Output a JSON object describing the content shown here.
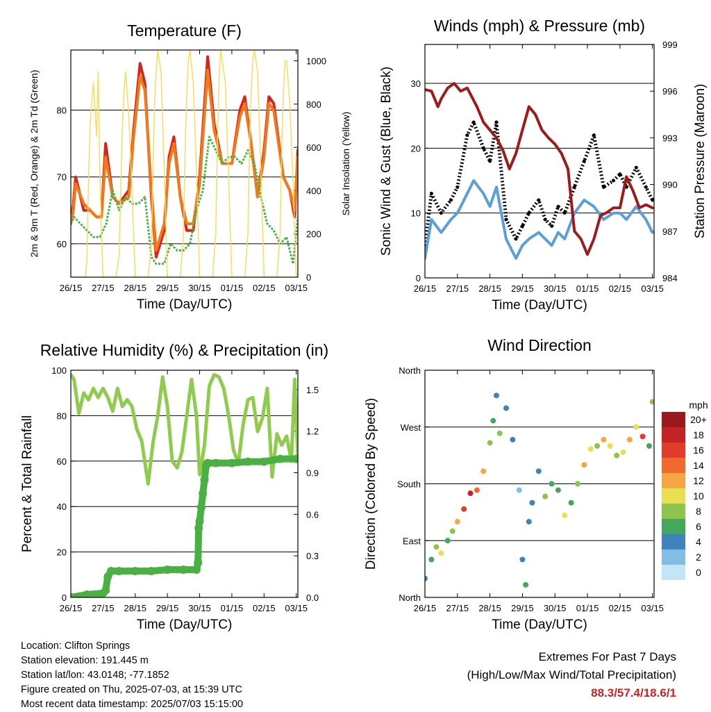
{
  "info": {
    "location": "Location: Clifton Springs",
    "elevation": "Station elevation: 191.445 m",
    "latlon": "Station lat/lon: 43.0148; -77.1852",
    "created": "Figure created on Thu, 2025-07-03, at 15:39 UTC",
    "recent": "Most recent data timestamp: 2025/07/03 15:15:00"
  },
  "extremes": {
    "title": "Extremes For Past 7 Days",
    "subtitle": "(High/Low/Max Wind/Total Precipitation)",
    "values": "88.3/57.4/18.6/1",
    "color": "#cc2222"
  },
  "colors": {
    "temp2m": "#d6251c",
    "temp9m": "#f07a1a",
    "dewpoint": "#4ab043",
    "solar": "#f7dc5c",
    "gust": "#000000",
    "wind": "#5aa0d6",
    "pressure": "#9e1b1b",
    "rh": "#8fcc4e",
    "precip": "#4ab043"
  },
  "chart_data": [
    {
      "type": "line",
      "title": "Temperature (F)",
      "xlabel": "Time (Day/UTC)",
      "ylabel": "2m & 9m T (Red, Orange) & 2m Td (Green)",
      "ylabel_right": "Solar Insolation (Yellow)",
      "x_ticks": [
        "26/15",
        "27/15",
        "28/15",
        "29/15",
        "30/15",
        "01/15",
        "02/15",
        "03/15"
      ],
      "ylim": [
        55,
        89
      ],
      "y_ticks": [
        60,
        70,
        80
      ],
      "ylim_right": [
        0,
        1050
      ],
      "y_ticks_right": [
        0,
        200,
        400,
        600,
        800,
        1000
      ],
      "grid": "horizontal",
      "series": [
        {
          "axis": "left",
          "role": "temp2m",
          "x": [
            0,
            0.08,
            0.15,
            0.4,
            0.6,
            0.8,
            0.95,
            1.08,
            1.3,
            1.5,
            1.8,
            1.95,
            2.15,
            2.3,
            2.5,
            2.65,
            2.9,
            3.05,
            3.2,
            3.4,
            3.6,
            3.8,
            4.0,
            4.25,
            4.45,
            4.7,
            5.0,
            5.25,
            5.4,
            5.6,
            5.8,
            6.0,
            6.15,
            6.3,
            6.6,
            6.8,
            6.95,
            7.05
          ],
          "y": [
            63,
            66,
            70,
            65,
            65,
            64,
            64,
            75,
            67,
            66,
            68,
            77,
            87,
            84,
            67,
            58,
            62,
            73,
            76,
            67,
            62,
            62,
            70,
            88,
            78,
            72,
            72,
            80,
            82,
            75,
            67,
            74,
            82,
            81,
            70,
            68,
            64,
            74
          ]
        },
        {
          "axis": "left",
          "role": "temp9m",
          "x": [
            0,
            0.08,
            0.15,
            0.4,
            0.6,
            0.8,
            0.95,
            1.08,
            1.3,
            1.5,
            1.8,
            1.95,
            2.15,
            2.3,
            2.5,
            2.65,
            2.9,
            3.05,
            3.2,
            3.4,
            3.6,
            3.8,
            4.0,
            4.25,
            4.45,
            4.7,
            5.0,
            5.25,
            5.4,
            5.6,
            5.8,
            6.0,
            6.15,
            6.3,
            6.6,
            6.8,
            6.95,
            7.05
          ],
          "y": [
            63,
            65,
            69,
            66,
            65,
            64,
            64,
            73,
            67,
            66,
            67,
            76,
            85,
            83,
            68,
            59,
            63,
            72,
            75,
            67,
            63,
            63,
            69,
            86,
            77,
            72,
            72,
            79,
            81,
            75,
            67,
            73,
            81,
            80,
            70,
            68,
            65,
            73
          ]
        },
        {
          "axis": "left",
          "role": "dewpoint",
          "x": [
            0,
            0.1,
            0.3,
            0.5,
            0.7,
            0.9,
            1.1,
            1.3,
            1.5,
            1.7,
            1.9,
            2.1,
            2.3,
            2.5,
            2.65,
            2.9,
            3.1,
            3.3,
            3.5,
            3.7,
            3.9,
            4.1,
            4.3,
            4.5,
            4.7,
            4.9,
            5.1,
            5.3,
            5.5,
            5.7,
            5.9,
            6.1,
            6.3,
            6.5,
            6.7,
            6.9,
            7.05
          ],
          "y": [
            63,
            64,
            63,
            62,
            61,
            61,
            63,
            68,
            65,
            67,
            66,
            66,
            67,
            58,
            57,
            57,
            60,
            59,
            59,
            60,
            65,
            68,
            76,
            74,
            72,
            73,
            73,
            72,
            74,
            72,
            67,
            63,
            62,
            60,
            61,
            57,
            64
          ]
        },
        {
          "axis": "right",
          "role": "solar",
          "x": [
            0,
            0.45,
            0.5,
            0.55,
            0.6,
            0.7,
            0.8,
            0.85,
            0.9,
            0.95,
            1.0,
            1.3,
            1.4,
            1.5,
            1.55,
            1.6,
            1.65,
            1.7,
            1.8,
            1.9,
            2.0,
            2.3,
            2.4,
            2.5,
            2.55,
            2.6,
            2.65,
            2.7,
            2.8,
            2.9,
            3.0,
            3.3,
            3.4,
            3.5,
            3.55,
            3.6,
            3.65,
            3.7,
            3.8,
            3.9,
            4.0,
            4.3,
            4.4,
            4.5,
            4.55,
            4.6,
            4.65,
            4.7,
            4.8,
            4.9,
            5.0,
            5.3,
            5.4,
            5.5,
            5.55,
            5.6,
            5.65,
            5.7,
            5.8,
            5.9,
            6.0,
            6.3,
            6.4,
            6.5,
            6.55,
            6.6,
            6.65,
            6.7,
            6.8,
            6.9,
            7.0
          ],
          "y": [
            0,
            0,
            80,
            450,
            700,
            900,
            650,
            950,
            500,
            200,
            0,
            0,
            0,
            100,
            400,
            700,
            850,
            950,
            750,
            400,
            0,
            0,
            0,
            150,
            500,
            800,
            950,
            1050,
            950,
            500,
            0,
            0,
            0,
            200,
            600,
            850,
            1000,
            1050,
            900,
            500,
            0,
            0,
            0,
            200,
            600,
            900,
            1050,
            1000,
            900,
            450,
            0,
            0,
            0,
            200,
            600,
            850,
            1000,
            1050,
            950,
            500,
            0,
            0,
            0,
            200,
            600,
            850,
            1000,
            1000,
            800,
            450,
            0
          ]
        }
      ]
    },
    {
      "type": "line",
      "title": "Winds (mph) & Pressure (mb)",
      "xlabel": "Time (Day/UTC)",
      "ylabel": "Sonic Wind & Gust (Blue, Black)",
      "ylabel_right": "Station Pressure (Maroon)",
      "x_ticks": [
        "26/15",
        "27/15",
        "28/15",
        "29/15",
        "30/15",
        "01/15",
        "02/15",
        "03/15"
      ],
      "ylim": [
        0,
        36
      ],
      "y_ticks": [
        0,
        10,
        20,
        30
      ],
      "ylim_right": [
        984,
        999
      ],
      "y_ticks_right": [
        984,
        987,
        990,
        993,
        996,
        999
      ],
      "grid": "horizontal",
      "series": [
        {
          "axis": "left",
          "role": "gust",
          "x": [
            0,
            0.2,
            0.5,
            0.8,
            1.0,
            1.3,
            1.5,
            1.8,
            2.0,
            2.2,
            2.5,
            2.8,
            3.0,
            3.2,
            3.5,
            3.7,
            3.9,
            4.1,
            4.3,
            4.6,
            4.9,
            5.2,
            5.5,
            5.8,
            6.0,
            6.2,
            6.5,
            6.8,
            7.0
          ],
          "y": [
            5,
            13,
            10,
            12,
            14,
            22,
            24,
            20,
            18,
            24,
            9,
            6,
            8,
            10,
            12,
            9,
            8,
            11,
            10,
            14,
            18,
            22,
            14,
            15,
            16,
            14,
            17,
            14,
            12
          ]
        },
        {
          "axis": "left",
          "role": "wind",
          "x": [
            0,
            0.2,
            0.5,
            0.8,
            1.0,
            1.3,
            1.5,
            1.8,
            2.0,
            2.2,
            2.5,
            2.8,
            3.0,
            3.2,
            3.5,
            3.7,
            3.9,
            4.1,
            4.3,
            4.6,
            4.9,
            5.2,
            5.5,
            5.8,
            6.0,
            6.2,
            6.5,
            6.8,
            7.0
          ],
          "y": [
            3,
            9,
            7,
            9,
            10,
            13,
            15,
            13,
            11,
            14,
            6,
            3,
            5,
            6,
            7,
            6,
            5,
            7,
            6,
            10,
            12,
            11,
            9,
            10,
            10,
            9,
            11,
            9,
            7
          ]
        },
        {
          "axis": "right",
          "role": "pressure",
          "x": [
            0,
            0.2,
            0.4,
            0.5,
            0.7,
            0.9,
            1.1,
            1.3,
            1.6,
            1.8,
            2.0,
            2.2,
            2.4,
            2.6,
            2.8,
            3.0,
            3.2,
            3.4,
            3.6,
            3.8,
            4.0,
            4.2,
            4.4,
            4.6,
            4.8,
            5.0,
            5.2,
            5.4,
            5.6,
            5.8,
            6.0,
            6.2,
            6.4,
            6.6,
            6.8,
            7.0
          ],
          "y": [
            996.1,
            996,
            995,
            995.5,
            996.2,
            996.5,
            996,
            996.2,
            995,
            994,
            993.5,
            993,
            992.2,
            991,
            992,
            993.5,
            995,
            994.5,
            993.5,
            993,
            992.6,
            992,
            991,
            987,
            986.5,
            985.5,
            986.5,
            988,
            988.2,
            988.5,
            988.5,
            990.5,
            989.6,
            988.5,
            988.7,
            988.5
          ]
        }
      ]
    },
    {
      "type": "line",
      "title": "Relative Humidity (%) & Precipitation (in)",
      "xlabel": "Time (Day/UTC)",
      "ylabel": "Percent & Total Rainfall",
      "x_ticks": [
        "26/15",
        "27/15",
        "28/15",
        "29/15",
        "30/15",
        "01/15",
        "02/15",
        "03/15"
      ],
      "ylim": [
        0,
        100
      ],
      "y_ticks": [
        0,
        20,
        40,
        60,
        80,
        100
      ],
      "ylim_right": [
        0,
        1.64
      ],
      "y_ticks_right": [
        "0.0",
        "0.3",
        "0.6",
        "0.9",
        "1.2",
        "1.5"
      ],
      "grid": "horizontal",
      "series": [
        {
          "axis": "left",
          "role": "rh",
          "x": [
            0,
            0.1,
            0.25,
            0.4,
            0.55,
            0.7,
            0.85,
            1.0,
            1.15,
            1.3,
            1.45,
            1.6,
            1.75,
            1.9,
            2.05,
            2.2,
            2.4,
            2.55,
            2.7,
            2.85,
            3.0,
            3.15,
            3.3,
            3.45,
            3.6,
            3.75,
            3.9,
            4.0,
            4.15,
            4.3,
            4.45,
            4.6,
            4.75,
            4.9,
            5.05,
            5.2,
            5.35,
            5.5,
            5.65,
            5.8,
            5.95,
            6.1,
            6.25,
            6.4,
            6.55,
            6.7,
            6.85,
            6.95,
            7.05
          ],
          "y": [
            98,
            96,
            81,
            90,
            87,
            92,
            88,
            92,
            88,
            82,
            92,
            84,
            87,
            84,
            74,
            69,
            50,
            68,
            80,
            97,
            84,
            60,
            57,
            64,
            80,
            96,
            80,
            54,
            67,
            93,
            98,
            97,
            92,
            80,
            65,
            59,
            76,
            87,
            88,
            73,
            79,
            92,
            53,
            72,
            67,
            71,
            60,
            96,
            62
          ]
        },
        {
          "axis": "right",
          "role": "precip",
          "x": [
            0,
            0.5,
            1.0,
            1.08,
            1.15,
            1.25,
            1.5,
            2.0,
            2.5,
            3.0,
            3.5,
            3.9,
            3.95,
            3.97,
            4.0,
            4.05,
            4.1,
            4.15,
            4.2,
            4.25,
            4.5,
            5.0,
            5.5,
            6.0,
            6.5,
            7.0,
            7.05
          ],
          "y": [
            0,
            0.02,
            0.03,
            0.05,
            0.15,
            0.19,
            0.19,
            0.19,
            0.19,
            0.2,
            0.2,
            0.2,
            0.25,
            0.5,
            0.55,
            0.65,
            0.75,
            0.85,
            0.95,
            0.97,
            0.97,
            0.97,
            0.98,
            0.98,
            1.0,
            1.0,
            1.0
          ]
        }
      ]
    },
    {
      "type": "scatter",
      "title": "Wind Direction",
      "xlabel": "Time (Day/UTC)",
      "ylabel": "Direction (Colored By Speed)",
      "x_ticks": [
        "26/15",
        "27/15",
        "28/15",
        "29/15",
        "30/15",
        "01/15",
        "02/15",
        "03/15"
      ],
      "ylim": [
        0,
        360
      ],
      "y_ticks": [
        "North",
        "East",
        "South",
        "West",
        "North"
      ],
      "grid": "horizontal",
      "colorbar": {
        "title": "mph",
        "labels": [
          "20+",
          "18",
          "16",
          "14",
          "12",
          "10",
          "8",
          "6",
          "4",
          "2",
          "0"
        ],
        "colors": [
          "#99191c",
          "#c42324",
          "#e23c2a",
          "#f06a2e",
          "#f8a644",
          "#e8e050",
          "#8ec44e",
          "#42a95c",
          "#3f82bd",
          "#82bde6",
          "#c4e5f8"
        ]
      },
      "series": [
        {
          "name": "direction",
          "x": [
            0,
            0.2,
            0.35,
            0.5,
            0.7,
            0.85,
            1.0,
            1.2,
            1.4,
            1.6,
            1.8,
            2.0,
            2.1,
            2.2,
            2.3,
            2.5,
            2.7,
            2.9,
            3.0,
            3.1,
            3.2,
            3.3,
            3.5,
            3.7,
            3.9,
            4.1,
            4.3,
            4.5,
            4.7,
            4.9,
            5.1,
            5.3,
            5.5,
            5.7,
            5.9,
            6.1,
            6.3,
            6.5,
            6.7,
            6.9,
            7.0
          ],
          "y": [
            30,
            60,
            80,
            70,
            90,
            105,
            120,
            140,
            165,
            170,
            200,
            245,
            280,
            320,
            260,
            300,
            250,
            170,
            60,
            20,
            120,
            150,
            200,
            160,
            180,
            170,
            130,
            150,
            180,
            210,
            235,
            240,
            250,
            240,
            225,
            230,
            250,
            270,
            255,
            240,
            310
          ],
          "speed": [
            4,
            6,
            8,
            10,
            6,
            8,
            12,
            16,
            18,
            14,
            12,
            8,
            6,
            4,
            8,
            3,
            4,
            2,
            4,
            6,
            4,
            4,
            4,
            8,
            6,
            6,
            10,
            6,
            8,
            12,
            10,
            8,
            12,
            10,
            8,
            10,
            12,
            10,
            16,
            6,
            8
          ]
        }
      ]
    }
  ]
}
